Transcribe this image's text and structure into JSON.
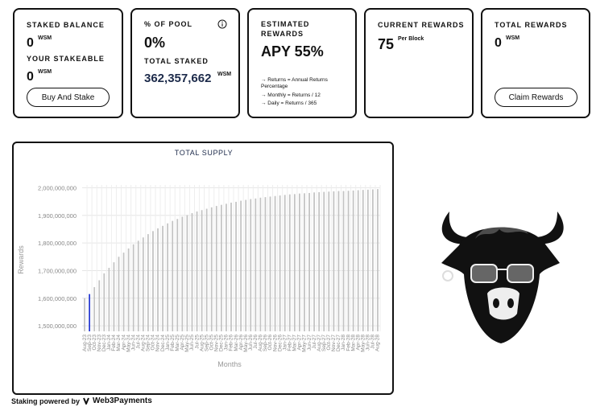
{
  "cards": {
    "staked": {
      "label": "STAKED BALANCE",
      "value": "0",
      "unit": "WSM",
      "label2": "YOUR STAKEABLE",
      "value2": "0",
      "unit2": "WSM",
      "button": "Buy And Stake"
    },
    "pool": {
      "label": "% OF POOL",
      "value": "0%",
      "label2": "TOTAL STAKED",
      "value2": "362,357,662",
      "unit2": "WSM"
    },
    "estimated": {
      "label": "ESTIMATED REWARDS",
      "value": "APY 55%",
      "notes": [
        "→ Returns = Annual Returns Percentage",
        "→ Monthly = Returns / 12",
        "→ Daily = Returns / 365"
      ]
    },
    "current": {
      "label": "CURRENT REWARDS",
      "value": "75",
      "unit": "Per Block"
    },
    "total": {
      "label": "TOTAL REWARDS",
      "value": "0",
      "unit": "WSM",
      "button": "Claim Rewards"
    }
  },
  "chart_data": {
    "type": "bar",
    "title": "TOTAL SUPPLY",
    "x_label": "Months",
    "y_label": "Rewards",
    "categories": [
      "Aug-23",
      "Sep-23",
      "Oct-23",
      "Nov-23",
      "Dec-23",
      "Jan-24",
      "Feb-24",
      "Mar-24",
      "Apr-24",
      "May-24",
      "Jun-24",
      "Jul-24",
      "Aug-24",
      "Sep-24",
      "Oct-24",
      "Nov-24",
      "Dec-24",
      "Jan-25",
      "Feb-25",
      "Mar-25",
      "Apr-25",
      "May-25",
      "Jun-25",
      "Jul-25",
      "Aug-25",
      "Sep-25",
      "Oct-25",
      "Nov-25",
      "Dec-25",
      "Jan-26",
      "Feb-26",
      "Mar-26",
      "Apr-26",
      "May-26",
      "Jun-26",
      "Jul-26",
      "Aug-26",
      "Sep-26",
      "Oct-26",
      "Nov-26",
      "Dec-26",
      "Jan-27",
      "Feb-27",
      "Mar-27",
      "Apr-27",
      "May-27",
      "Jun-27",
      "Jul-27",
      "Aug-27",
      "Sep-27",
      "Oct-27",
      "Nov-27",
      "Dec-27",
      "Jan-28",
      "Feb-28",
      "Mar-28",
      "Apr-28",
      "May-28",
      "Jun-28",
      "Jul-28",
      "Aug-28"
    ],
    "values": [
      1600000000,
      1615000000,
      1640000000,
      1665000000,
      1690000000,
      1710000000,
      1730000000,
      1750000000,
      1765000000,
      1780000000,
      1795000000,
      1808000000,
      1820000000,
      1832000000,
      1843000000,
      1853000000,
      1862000000,
      1871000000,
      1880000000,
      1887000000,
      1895000000,
      1901000000,
      1908000000,
      1914000000,
      1919000000,
      1924000000,
      1929000000,
      1934000000,
      1938000000,
      1942000000,
      1946000000,
      1949000000,
      1953000000,
      1956000000,
      1959000000,
      1961000000,
      1964000000,
      1966000000,
      1968000000,
      1970000000,
      1972000000,
      1974000000,
      1976000000,
      1977000000,
      1979000000,
      1980000000,
      1981000000,
      1983000000,
      1984000000,
      1985000000,
      1986000000,
      1987000000,
      1988000000,
      1988000000,
      1989000000,
      1990000000,
      1991000000,
      1992000000,
      1993000000,
      1994000000,
      1995000000
    ],
    "colors": [
      "#c4c4c4",
      "#2d3fd3",
      "#c4c4c4",
      "#c4c4c4",
      "#c4c4c4",
      "#c4c4c4",
      "#c4c4c4",
      "#c4c4c4",
      "#c4c4c4",
      "#c4c4c4",
      "#c4c4c4",
      "#c4c4c4",
      "#c4c4c4",
      "#c4c4c4",
      "#c4c4c4",
      "#c4c4c4",
      "#c4c4c4",
      "#c4c4c4",
      "#c4c4c4",
      "#c4c4c4",
      "#c4c4c4",
      "#c4c4c4",
      "#c4c4c4",
      "#c4c4c4",
      "#c4c4c4",
      "#c4c4c4",
      "#c4c4c4",
      "#c4c4c4",
      "#c4c4c4",
      "#c4c4c4",
      "#c4c4c4",
      "#c4c4c4",
      "#c4c4c4",
      "#c4c4c4",
      "#c4c4c4",
      "#c4c4c4",
      "#c4c4c4",
      "#c4c4c4",
      "#c4c4c4",
      "#c4c4c4",
      "#c4c4c4",
      "#c4c4c4",
      "#c4c4c4",
      "#c4c4c4",
      "#c4c4c4",
      "#c4c4c4",
      "#c4c4c4",
      "#c4c4c4",
      "#c4c4c4",
      "#c4c4c4",
      "#c4c4c4",
      "#c4c4c4",
      "#c4c4c4",
      "#c4c4c4",
      "#c4c4c4",
      "#c4c4c4",
      "#c4c4c4",
      "#c4c4c4",
      "#c4c4c4",
      "#c4c4c4",
      "#c4c4c4"
    ],
    "ylim": [
      1480000000,
      2010000000
    ],
    "yticks": [
      {
        "value": 1500000000,
        "label": "1,500,000,000"
      },
      {
        "value": 1600000000,
        "label": "1,600,000,000"
      },
      {
        "value": 1700000000,
        "label": "1,700,000,000"
      },
      {
        "value": 1800000000,
        "label": "1,800,000,000"
      },
      {
        "value": 1900000000,
        "label": "1,900,000,000"
      },
      {
        "value": 2000000000,
        "label": "2,000,000,000"
      }
    ],
    "grid": true
  },
  "footer": {
    "text": "Staking powered by",
    "brand": "Web3Payments"
  }
}
